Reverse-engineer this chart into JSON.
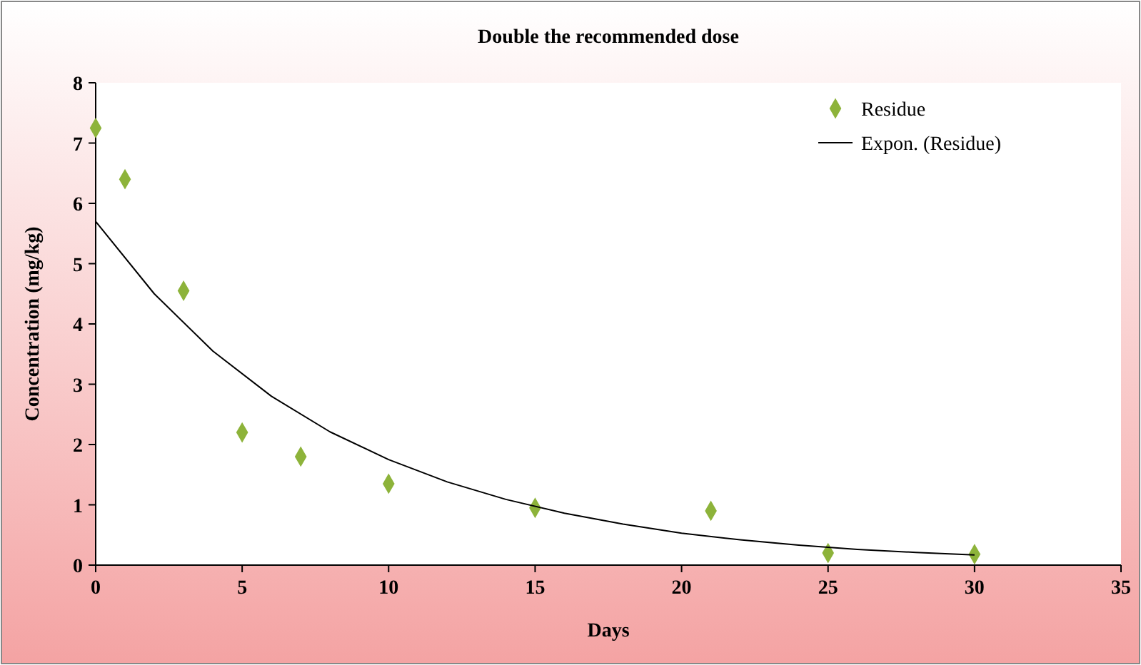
{
  "chart_data": {
    "type": "scatter",
    "title": "Double the recommended dose",
    "xlabel": "Days",
    "ylabel": "Concentration (mg/kg)",
    "xlim": [
      0,
      35
    ],
    "xticks": [
      0,
      5,
      10,
      15,
      20,
      25,
      30,
      35
    ],
    "ylim": [
      0,
      8
    ],
    "yticks": [
      0,
      1,
      2,
      3,
      4,
      5,
      6,
      7,
      8
    ],
    "grid": false,
    "legend": "top right",
    "series": [
      {
        "name": "Residue",
        "marker": "diamond",
        "color": "#8db33a",
        "x": [
          0,
          1,
          3,
          5,
          7,
          10,
          15,
          21,
          25,
          30
        ],
        "values": [
          7.25,
          6.4,
          4.55,
          2.2,
          1.8,
          1.35,
          0.95,
          0.9,
          0.2,
          0.18
        ]
      },
      {
        "name": "Expon. (Residue)",
        "type": "line",
        "marker": "none",
        "line_style": "solid",
        "color": "#000000",
        "x": [
          0,
          2,
          4,
          6,
          8,
          10,
          12,
          14,
          16,
          18,
          20,
          22,
          24,
          26,
          28,
          30
        ],
        "values": [
          5.7,
          4.5,
          3.55,
          2.8,
          2.21,
          1.75,
          1.38,
          1.09,
          0.86,
          0.68,
          0.53,
          0.42,
          0.33,
          0.26,
          0.21,
          0.17
        ]
      }
    ]
  }
}
